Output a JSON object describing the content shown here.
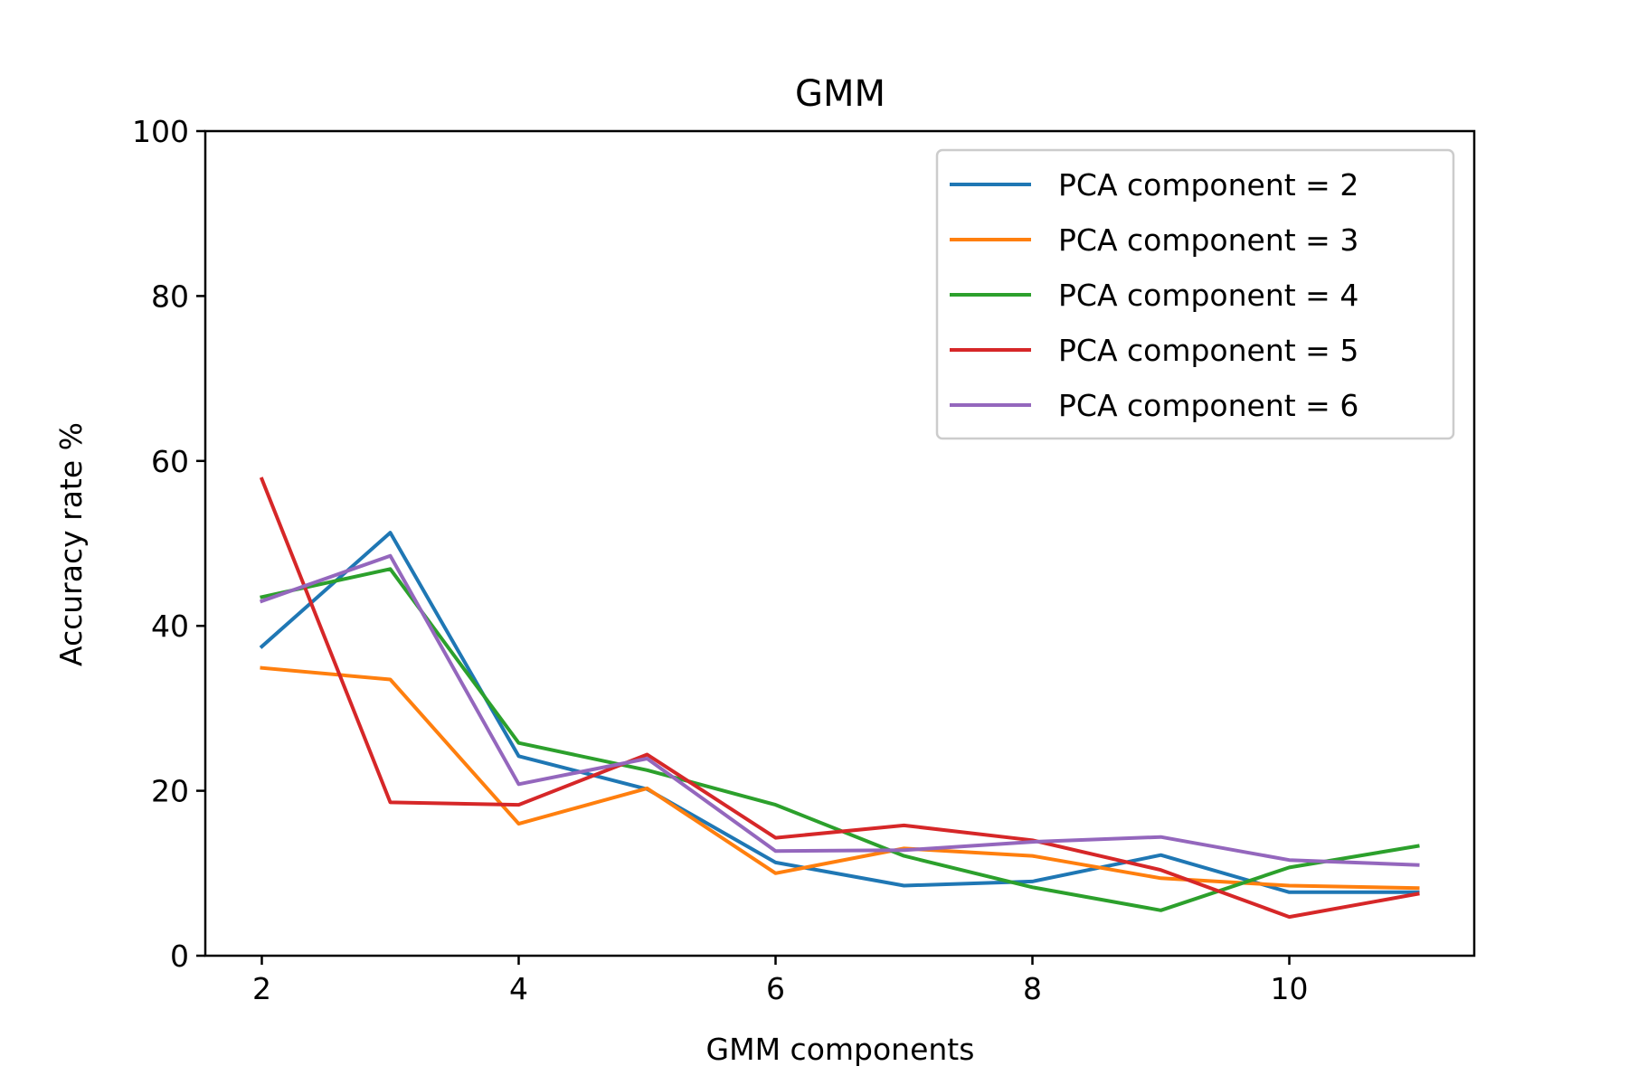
{
  "chart_data": {
    "type": "line",
    "title": "GMM",
    "xlabel": "GMM components",
    "ylabel": "Accuracy rate %",
    "x": [
      2,
      3,
      4,
      5,
      6,
      7,
      8,
      9,
      10,
      11
    ],
    "xlim": [
      1.56,
      11.44
    ],
    "ylim": [
      0,
      100
    ],
    "xticks": [
      2,
      4,
      6,
      8,
      10
    ],
    "yticks": [
      0,
      20,
      40,
      60,
      80,
      100
    ],
    "grid": false,
    "legend_position": "top-right",
    "series": [
      {
        "name": "PCA component = 2",
        "color": "#1f77b4",
        "values": [
          37.5,
          51.3,
          24.2,
          20.2,
          11.3,
          8.5,
          9.0,
          12.2,
          7.7,
          7.7
        ]
      },
      {
        "name": "PCA component = 3",
        "color": "#ff7f0e",
        "values": [
          34.9,
          33.5,
          16.0,
          20.3,
          10.0,
          13.0,
          12.1,
          9.4,
          8.5,
          8.2
        ]
      },
      {
        "name": "PCA component = 4",
        "color": "#2ca02c",
        "values": [
          43.5,
          46.9,
          25.8,
          22.5,
          18.3,
          12.1,
          8.3,
          5.5,
          10.7,
          13.3
        ]
      },
      {
        "name": "PCA component = 5",
        "color": "#d62728",
        "values": [
          57.8,
          18.6,
          18.3,
          24.4,
          14.3,
          15.8,
          14.0,
          10.4,
          4.7,
          7.5
        ]
      },
      {
        "name": "PCA component = 6",
        "color": "#9467bd",
        "values": [
          43.0,
          48.5,
          20.8,
          23.9,
          12.7,
          12.8,
          13.8,
          14.4,
          11.6,
          11.0
        ]
      }
    ]
  }
}
